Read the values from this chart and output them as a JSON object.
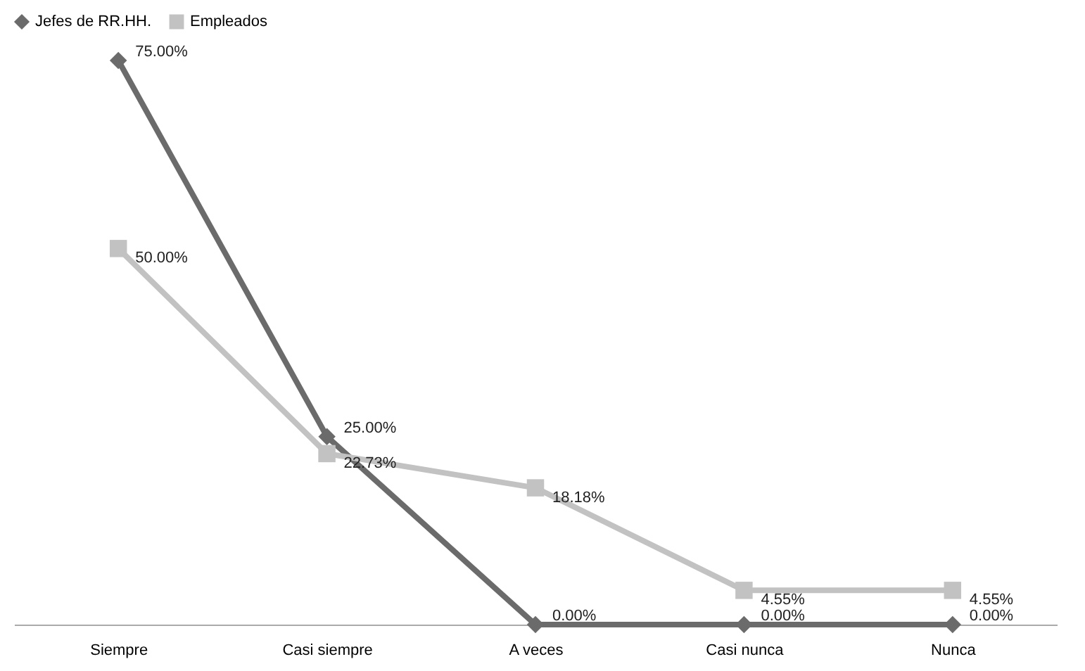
{
  "chart_data": {
    "type": "line",
    "categories": [
      "Siempre",
      "Casi siempre",
      "A veces",
      "Casi nunca",
      "Nunca"
    ],
    "series": [
      {
        "name": "Jefes de RR.HH.",
        "color": "#6b6b6b",
        "marker": "diamond",
        "values": [
          75,
          25,
          0,
          0,
          0
        ],
        "value_labels": [
          "75.00%",
          "25.00%",
          "0.00%",
          "0.00%",
          "0.00%"
        ]
      },
      {
        "name": "Empleados",
        "color": "#c2c2c2",
        "marker": "square",
        "values": [
          50,
          22.73,
          18.18,
          4.55,
          4.55
        ],
        "value_labels": [
          "50.00%",
          "22.73%",
          "18.18%",
          "4.55%",
          "4.55%"
        ]
      }
    ],
    "legend": "top",
    "grid": false,
    "tick_labels": "x",
    "line_style": "solid"
  }
}
